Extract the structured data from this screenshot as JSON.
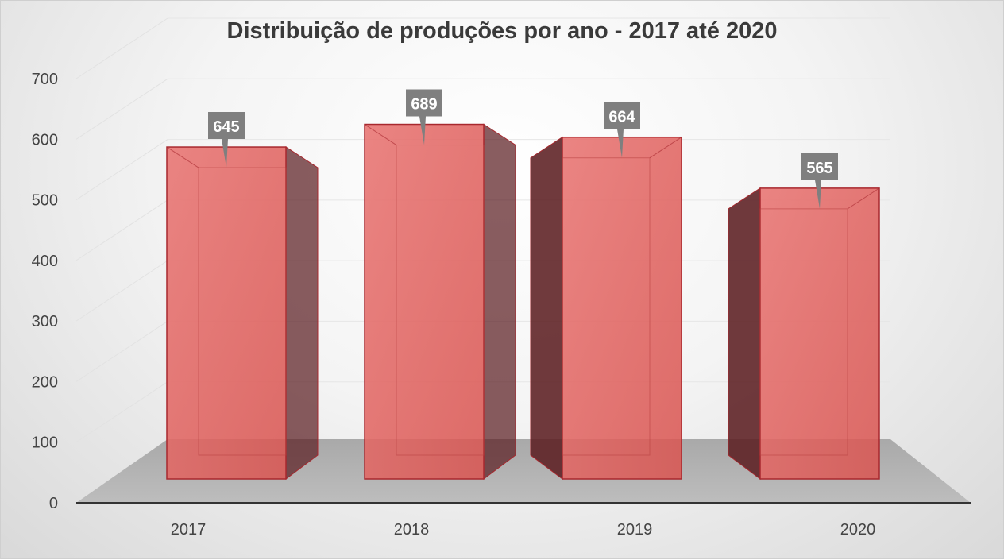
{
  "chart_data": {
    "type": "bar",
    "title": "Distribuição de produções por ano - 2017 até 2020",
    "categories": [
      "2017",
      "2018",
      "2019",
      "2020"
    ],
    "values": [
      645,
      689,
      664,
      565
    ],
    "xlabel": "",
    "ylabel": "",
    "ylim": [
      0,
      700
    ],
    "yticks": [
      "0",
      "100",
      "200",
      "300",
      "400",
      "500",
      "600",
      "700"
    ],
    "grid": true,
    "legend": "none",
    "style": "3d",
    "colors": {
      "bar_front": "#d9534f",
      "bar_edge": "#a8282e",
      "bar_side_dark": "#5c1f22",
      "label_box": "#7f7f7f",
      "floor": "#bdbdbd"
    }
  }
}
